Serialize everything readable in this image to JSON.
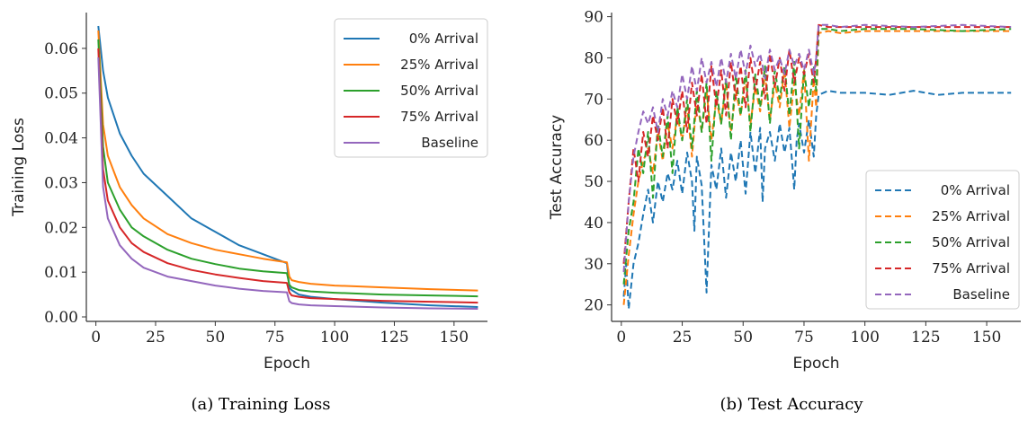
{
  "captions": {
    "a": "(a) Training Loss",
    "b": "(b) Test Accuracy"
  },
  "colors": {
    "0% Arrival": "#1f77b4",
    "25% Arrival": "#ff7f0e",
    "50% Arrival": "#2ca02c",
    "75% Arrival": "#d62728",
    "Baseline": "#9467bd"
  },
  "chart_data": [
    {
      "type": "line",
      "title": "",
      "xlabel": "Epoch",
      "ylabel": "Training Loss",
      "xlim": [
        -4,
        164
      ],
      "ylim": [
        -0.001,
        0.068
      ],
      "xticks": [
        0,
        25,
        50,
        75,
        100,
        125,
        150
      ],
      "yticks": [
        0.0,
        0.01,
        0.02,
        0.03,
        0.04,
        0.05,
        0.06
      ],
      "ytick_labels": [
        "0.00",
        "0.01",
        "0.02",
        "0.03",
        "0.04",
        "0.05",
        "0.06"
      ],
      "legend_position": "top-right",
      "line_style": "solid",
      "series": [
        {
          "name": "0% Arrival",
          "x": [
            1,
            3,
            5,
            10,
            15,
            20,
            30,
            40,
            50,
            60,
            70,
            80,
            81,
            82,
            85,
            90,
            100,
            120,
            140,
            160
          ],
          "y": [
            0.065,
            0.055,
            0.049,
            0.041,
            0.036,
            0.032,
            0.027,
            0.022,
            0.019,
            0.016,
            0.014,
            0.012,
            0.0065,
            0.006,
            0.005,
            0.0045,
            0.004,
            0.0032,
            0.0026,
            0.0022
          ]
        },
        {
          "name": "25% Arrival",
          "x": [
            1,
            3,
            5,
            10,
            15,
            20,
            30,
            40,
            50,
            60,
            70,
            80,
            81,
            82,
            85,
            90,
            100,
            120,
            140,
            160
          ],
          "y": [
            0.064,
            0.043,
            0.036,
            0.029,
            0.025,
            0.022,
            0.0185,
            0.0165,
            0.015,
            0.014,
            0.013,
            0.0122,
            0.009,
            0.0082,
            0.0078,
            0.0074,
            0.007,
            0.0066,
            0.0062,
            0.0059
          ]
        },
        {
          "name": "50% Arrival",
          "x": [
            1,
            3,
            5,
            10,
            15,
            20,
            30,
            40,
            50,
            60,
            70,
            80,
            81,
            82,
            85,
            90,
            100,
            120,
            140,
            160
          ],
          "y": [
            0.062,
            0.038,
            0.03,
            0.024,
            0.02,
            0.018,
            0.015,
            0.013,
            0.0118,
            0.0108,
            0.0102,
            0.0098,
            0.0072,
            0.0066,
            0.006,
            0.0057,
            0.0054,
            0.005,
            0.0048,
            0.0046
          ]
        },
        {
          "name": "75% Arrival",
          "x": [
            1,
            3,
            5,
            10,
            15,
            20,
            30,
            40,
            50,
            60,
            70,
            80,
            81,
            82,
            85,
            90,
            100,
            120,
            140,
            160
          ],
          "y": [
            0.06,
            0.033,
            0.026,
            0.02,
            0.0165,
            0.0145,
            0.012,
            0.0105,
            0.0095,
            0.0087,
            0.008,
            0.0076,
            0.0055,
            0.0048,
            0.0045,
            0.0042,
            0.004,
            0.0036,
            0.0034,
            0.0032
          ]
        },
        {
          "name": "Baseline",
          "x": [
            1,
            3,
            5,
            10,
            15,
            20,
            30,
            40,
            50,
            60,
            70,
            80,
            81,
            82,
            85,
            90,
            100,
            120,
            140,
            160
          ],
          "y": [
            0.058,
            0.029,
            0.022,
            0.016,
            0.013,
            0.011,
            0.009,
            0.008,
            0.007,
            0.0063,
            0.0058,
            0.0055,
            0.0035,
            0.0031,
            0.0028,
            0.0026,
            0.0024,
            0.0021,
            0.0019,
            0.0018
          ]
        }
      ]
    },
    {
      "type": "line",
      "title": "",
      "xlabel": "Epoch",
      "ylabel": "Test Accuracy",
      "xlim": [
        -4,
        164
      ],
      "ylim": [
        16,
        91
      ],
      "xticks": [
        0,
        25,
        50,
        75,
        100,
        125,
        150
      ],
      "yticks": [
        20,
        30,
        40,
        50,
        60,
        70,
        80,
        90
      ],
      "ytick_labels": [
        "20",
        "30",
        "40",
        "50",
        "60",
        "70",
        "80",
        "90"
      ],
      "legend_position": "bottom-right",
      "line_style": "dashed",
      "series": [
        {
          "name": "0% Arrival",
          "x": [
            1,
            2,
            3,
            5,
            7,
            9,
            11,
            13,
            15,
            17,
            19,
            21,
            23,
            25,
            27,
            29,
            30,
            31,
            33,
            35,
            37,
            39,
            41,
            43,
            45,
            47,
            49,
            51,
            53,
            55,
            57,
            58,
            59,
            61,
            63,
            65,
            67,
            69,
            71,
            72,
            73,
            75,
            77,
            79,
            80,
            81,
            85,
            90,
            100,
            110,
            120,
            130,
            140,
            150,
            160
          ],
          "y": [
            22,
            30,
            19,
            30,
            35,
            42,
            48,
            40,
            50,
            45,
            52,
            48,
            55,
            47,
            57,
            50,
            38,
            56,
            49,
            23,
            54,
            48,
            58,
            46,
            57,
            50,
            60,
            47,
            62,
            52,
            63,
            45,
            58,
            62,
            55,
            64,
            57,
            63,
            48,
            60,
            64,
            57,
            65,
            56,
            66,
            71,
            72,
            71.5,
            71.5,
            71,
            72,
            71,
            71.5,
            71.5,
            71.5
          ]
        },
        {
          "name": "25% Arrival",
          "x": [
            1,
            3,
            5,
            7,
            9,
            11,
            13,
            15,
            17,
            19,
            21,
            23,
            25,
            27,
            29,
            31,
            33,
            35,
            37,
            39,
            41,
            43,
            45,
            47,
            49,
            51,
            53,
            55,
            57,
            59,
            61,
            63,
            65,
            67,
            69,
            71,
            73,
            75,
            77,
            79,
            80,
            81,
            85,
            90,
            100,
            120,
            140,
            160
          ],
          "y": [
            20,
            32,
            42,
            50,
            55,
            58,
            52,
            62,
            55,
            64,
            58,
            66,
            60,
            68,
            56,
            70,
            62,
            72,
            60,
            70,
            64,
            74,
            62,
            72,
            66,
            75,
            64,
            73,
            67,
            76,
            65,
            74,
            68,
            77,
            63,
            74,
            66,
            77,
            55,
            75,
            68,
            86,
            86.5,
            86,
            86.5,
            86.5,
            86.5,
            86.5
          ]
        },
        {
          "name": "50% Arrival",
          "x": [
            1,
            3,
            5,
            7,
            9,
            11,
            13,
            15,
            17,
            19,
            21,
            23,
            25,
            27,
            29,
            31,
            33,
            35,
            37,
            39,
            41,
            43,
            45,
            47,
            49,
            51,
            53,
            55,
            57,
            59,
            61,
            63,
            65,
            67,
            69,
            71,
            73,
            75,
            77,
            79,
            80,
            81,
            85,
            90,
            100,
            120,
            140,
            160
          ],
          "y": [
            25,
            38,
            45,
            58,
            52,
            62,
            46,
            64,
            56,
            66,
            52,
            68,
            60,
            70,
            58,
            72,
            62,
            74,
            55,
            72,
            64,
            75,
            60,
            76,
            66,
            77,
            62,
            76,
            68,
            78,
            64,
            77,
            70,
            78,
            66,
            79,
            58,
            77,
            68,
            78,
            72,
            87,
            87,
            86.5,
            87,
            87,
            86.5,
            87
          ]
        },
        {
          "name": "75% Arrival",
          "x": [
            1,
            3,
            5,
            7,
            9,
            11,
            13,
            15,
            17,
            19,
            21,
            23,
            25,
            27,
            29,
            31,
            33,
            35,
            37,
            39,
            41,
            43,
            45,
            47,
            49,
            51,
            53,
            55,
            57,
            59,
            61,
            63,
            65,
            67,
            69,
            71,
            73,
            75,
            77,
            79,
            80,
            81,
            85,
            90,
            100,
            120,
            140,
            160
          ],
          "y": [
            30,
            45,
            58,
            50,
            62,
            56,
            66,
            60,
            68,
            58,
            70,
            64,
            72,
            62,
            74,
            66,
            76,
            64,
            78,
            68,
            77,
            66,
            79,
            70,
            78,
            68,
            80,
            72,
            79,
            70,
            81,
            73,
            80,
            72,
            82,
            74,
            80,
            76,
            81,
            74,
            80,
            88,
            87.5,
            87.5,
            87.5,
            87.5,
            87.5,
            87.5
          ]
        },
        {
          "name": "Baseline",
          "x": [
            1,
            3,
            5,
            7,
            9,
            11,
            13,
            15,
            17,
            19,
            21,
            23,
            25,
            27,
            29,
            31,
            33,
            35,
            37,
            39,
            41,
            43,
            45,
            47,
            49,
            51,
            53,
            55,
            57,
            59,
            61,
            63,
            65,
            67,
            69,
            71,
            73,
            75,
            77,
            79,
            80,
            81,
            85,
            90,
            100,
            120,
            140,
            160
          ],
          "y": [
            28,
            45,
            56,
            62,
            67,
            64,
            68,
            62,
            70,
            66,
            72,
            68,
            76,
            70,
            78,
            72,
            80,
            74,
            79,
            73,
            80,
            74,
            81,
            75,
            82,
            76,
            83,
            78,
            81,
            75,
            82,
            77,
            80,
            76,
            82,
            78,
            81,
            77,
            82,
            76,
            80,
            88,
            88,
            87.5,
            88,
            87.5,
            88,
            87.5
          ]
        }
      ]
    }
  ]
}
